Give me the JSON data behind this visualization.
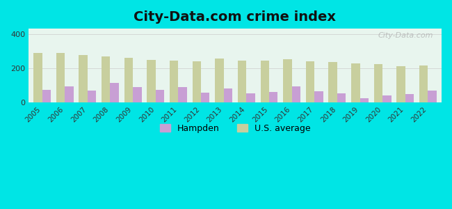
{
  "years": [
    2005,
    2006,
    2007,
    2008,
    2009,
    2010,
    2011,
    2012,
    2013,
    2014,
    2015,
    2016,
    2017,
    2018,
    2019,
    2020,
    2021,
    2022
  ],
  "hampden": [
    75,
    95,
    70,
    115,
    90,
    75,
    90,
    58,
    80,
    52,
    63,
    92,
    65,
    52,
    25,
    40,
    50,
    70
  ],
  "us_average": [
    290,
    290,
    278,
    270,
    260,
    248,
    243,
    238,
    258,
    244,
    243,
    250,
    238,
    235,
    228,
    222,
    213,
    215
  ],
  "hampden_color": "#c89fd4",
  "us_avg_color": "#c8cf9e",
  "background_outer": "#00e5e5",
  "background_plot": "#e8f5ee",
  "title": "City-Data.com crime index",
  "title_fontsize": 14,
  "ylabel_ticks": [
    0,
    200,
    400
  ],
  "ylim": [
    0,
    430
  ],
  "bar_width": 0.38,
  "legend_hampden": "Hampden",
  "legend_us": "U.S. average",
  "watermark": "City-Data.com"
}
